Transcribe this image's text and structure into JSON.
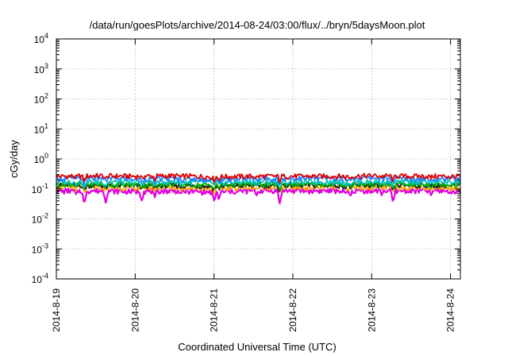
{
  "chart_data": {
    "type": "line",
    "title": "/data/run/goesPlots/archive/2014-08-24/03:00/flux/../bryn/5daysMoon.plot",
    "xlabel": "Coordinated Universal Time (UTC)",
    "ylabel": "cGy/day",
    "y_scale": "log",
    "ylim": [
      0.0001,
      10000
    ],
    "y_ticks": [
      {
        "value": 0.0001,
        "base": "10",
        "exp": "-4"
      },
      {
        "value": 0.001,
        "base": "10",
        "exp": "-3"
      },
      {
        "value": 0.01,
        "base": "10",
        "exp": "-2"
      },
      {
        "value": 0.1,
        "base": "10",
        "exp": "-1"
      },
      {
        "value": 1,
        "base": "10",
        "exp": "0"
      },
      {
        "value": 10,
        "base": "10",
        "exp": "1"
      },
      {
        "value": 100,
        "base": "10",
        "exp": "2"
      },
      {
        "value": 1000,
        "base": "10",
        "exp": "3"
      },
      {
        "value": 10000,
        "base": "10",
        "exp": "4"
      }
    ],
    "xlim": [
      "2014-08-19T00:00",
      "2014-08-24T03:00"
    ],
    "x_ticks": [
      {
        "value": "2014-08-19T00:00",
        "label": "2014-8-19"
      },
      {
        "value": "2014-08-20T00:00",
        "label": "2014-8-20"
      },
      {
        "value": "2014-08-21T00:00",
        "label": "2014-8-21"
      },
      {
        "value": "2014-08-22T00:00",
        "label": "2014-8-22"
      },
      {
        "value": "2014-08-23T00:00",
        "label": "2014-8-23"
      },
      {
        "value": "2014-08-24T00:00",
        "label": "2014-8-24"
      }
    ],
    "grid": true,
    "series_style": [
      {
        "color": "#e00000"
      },
      {
        "color": "#1a1a1a"
      },
      {
        "color": "#00c0c0"
      },
      {
        "color": "#00b000"
      },
      {
        "color": "#ffa000"
      },
      {
        "color": "#2080ff"
      },
      {
        "color": "#e000e0"
      }
    ],
    "series": [
      {
        "color": "#e00000",
        "levels": [
          {
            "x": "2014-08-19T00:00",
            "y": 0.26
          },
          {
            "x": "2014-08-19T12:00",
            "y": 0.27
          },
          {
            "x": "2014-08-20T00:00",
            "y": 0.26
          },
          {
            "x": "2014-08-20T12:00",
            "y": 0.27
          },
          {
            "x": "2014-08-21T00:00",
            "y": 0.25
          },
          {
            "x": "2014-08-21T12:00",
            "y": 0.26
          },
          {
            "x": "2014-08-22T00:00",
            "y": 0.26
          },
          {
            "x": "2014-08-22T12:00",
            "y": 0.26
          },
          {
            "x": "2014-08-23T00:00",
            "y": 0.27
          },
          {
            "x": "2014-08-23T12:00",
            "y": 0.26
          },
          {
            "x": "2014-08-24T03:00",
            "y": 0.26
          }
        ]
      },
      {
        "color": "#1a1a1a",
        "levels": [
          {
            "x": "2014-08-19T00:00",
            "y": 0.13
          },
          {
            "x": "2014-08-19T12:00",
            "y": 0.13
          },
          {
            "x": "2014-08-20T00:00",
            "y": 0.125
          },
          {
            "x": "2014-08-20T12:00",
            "y": 0.13
          },
          {
            "x": "2014-08-21T00:00",
            "y": 0.12
          },
          {
            "x": "2014-08-21T12:00",
            "y": 0.13
          },
          {
            "x": "2014-08-22T00:00",
            "y": 0.13
          },
          {
            "x": "2014-08-22T12:00",
            "y": 0.13
          },
          {
            "x": "2014-08-23T00:00",
            "y": 0.13
          },
          {
            "x": "2014-08-23T12:00",
            "y": 0.13
          },
          {
            "x": "2014-08-24T03:00",
            "y": 0.13
          }
        ]
      },
      {
        "color": "#00c0c0",
        "levels": [
          {
            "x": "2014-08-19T00:00",
            "y": 0.17
          },
          {
            "x": "2014-08-19T12:00",
            "y": 0.17
          },
          {
            "x": "2014-08-20T00:00",
            "y": 0.165
          },
          {
            "x": "2014-08-20T12:00",
            "y": 0.17
          },
          {
            "x": "2014-08-21T00:00",
            "y": 0.16
          },
          {
            "x": "2014-08-21T12:00",
            "y": 0.17
          },
          {
            "x": "2014-08-22T00:00",
            "y": 0.17
          },
          {
            "x": "2014-08-22T12:00",
            "y": 0.17
          },
          {
            "x": "2014-08-23T00:00",
            "y": 0.17
          },
          {
            "x": "2014-08-23T12:00",
            "y": 0.17
          },
          {
            "x": "2014-08-24T03:00",
            "y": 0.17
          }
        ]
      },
      {
        "color": "#00b000",
        "levels": [
          {
            "x": "2014-08-19T00:00",
            "y": 0.14
          },
          {
            "x": "2014-08-19T12:00",
            "y": 0.14
          },
          {
            "x": "2014-08-20T00:00",
            "y": 0.135
          },
          {
            "x": "2014-08-20T12:00",
            "y": 0.14
          },
          {
            "x": "2014-08-21T00:00",
            "y": 0.13
          },
          {
            "x": "2014-08-21T12:00",
            "y": 0.14
          },
          {
            "x": "2014-08-22T00:00",
            "y": 0.14
          },
          {
            "x": "2014-08-22T12:00",
            "y": 0.14
          },
          {
            "x": "2014-08-23T00:00",
            "y": 0.14
          },
          {
            "x": "2014-08-23T12:00",
            "y": 0.14
          },
          {
            "x": "2014-08-24T03:00",
            "y": 0.14
          }
        ]
      },
      {
        "color": "#ffa000",
        "levels": [
          {
            "x": "2014-08-19T00:00",
            "y": 0.11
          },
          {
            "x": "2014-08-19T12:00",
            "y": 0.11
          },
          {
            "x": "2014-08-20T00:00",
            "y": 0.105
          },
          {
            "x": "2014-08-20T12:00",
            "y": 0.11
          },
          {
            "x": "2014-08-21T00:00",
            "y": 0.1
          },
          {
            "x": "2014-08-21T12:00",
            "y": 0.11
          },
          {
            "x": "2014-08-22T00:00",
            "y": 0.11
          },
          {
            "x": "2014-08-22T12:00",
            "y": 0.11
          },
          {
            "x": "2014-08-23T00:00",
            "y": 0.11
          },
          {
            "x": "2014-08-23T12:00",
            "y": 0.11
          },
          {
            "x": "2014-08-24T03:00",
            "y": 0.11
          }
        ]
      },
      {
        "color": "#2080ff",
        "levels": [
          {
            "x": "2014-08-19T00:00",
            "y": 0.22
          },
          {
            "x": "2014-08-19T12:00",
            "y": 0.23
          },
          {
            "x": "2014-08-20T00:00",
            "y": 0.21
          },
          {
            "x": "2014-08-20T12:00",
            "y": 0.22
          },
          {
            "x": "2014-08-21T00:00",
            "y": 0.2
          },
          {
            "x": "2014-08-21T12:00",
            "y": 0.22
          },
          {
            "x": "2014-08-22T00:00",
            "y": 0.22
          },
          {
            "x": "2014-08-22T12:00",
            "y": 0.22
          },
          {
            "x": "2014-08-23T00:00",
            "y": 0.23
          },
          {
            "x": "2014-08-23T12:00",
            "y": 0.22
          },
          {
            "x": "2014-08-24T03:00",
            "y": 0.22
          }
        ]
      },
      {
        "color": "#e000e0",
        "levels": [
          {
            "x": "2014-08-19T00:00",
            "y": 0.085
          },
          {
            "x": "2014-08-19T12:00",
            "y": 0.085
          },
          {
            "x": "2014-08-20T00:00",
            "y": 0.08
          },
          {
            "x": "2014-08-20T12:00",
            "y": 0.085
          },
          {
            "x": "2014-08-21T00:00",
            "y": 0.075
          },
          {
            "x": "2014-08-21T12:00",
            "y": 0.085
          },
          {
            "x": "2014-08-22T00:00",
            "y": 0.085
          },
          {
            "x": "2014-08-22T12:00",
            "y": 0.085
          },
          {
            "x": "2014-08-23T00:00",
            "y": 0.085
          },
          {
            "x": "2014-08-23T12:00",
            "y": 0.085
          },
          {
            "x": "2014-08-24T03:00",
            "y": 0.085
          }
        ]
      }
    ],
    "dips": [
      {
        "x": "2014-08-19T02:00",
        "y": 0.08
      },
      {
        "x": "2014-08-19T06:00",
        "y": 0.06
      },
      {
        "x": "2014-08-19T08:30",
        "y": 0.025
      },
      {
        "x": "2014-08-19T15:00",
        "y": 0.04
      },
      {
        "x": "2014-08-20T02:00",
        "y": 0.05
      },
      {
        "x": "2014-08-20T06:00",
        "y": 0.045
      },
      {
        "x": "2014-08-20T14:00",
        "y": 0.06
      },
      {
        "x": "2014-08-21T00:00",
        "y": 0.04
      },
      {
        "x": "2014-08-21T01:30",
        "y": 0.05
      },
      {
        "x": "2014-08-21T13:00",
        "y": 0.065
      },
      {
        "x": "2014-08-21T20:00",
        "y": 0.03
      },
      {
        "x": "2014-08-22T16:00",
        "y": 0.06
      },
      {
        "x": "2014-08-22T17:30",
        "y": 0.05
      },
      {
        "x": "2014-08-23T03:00",
        "y": 0.07
      },
      {
        "x": "2014-08-23T06:30",
        "y": 0.03
      },
      {
        "x": "2014-08-23T18:00",
        "y": 0.06
      },
      {
        "x": "2014-08-24T00:00",
        "y": 0.065
      }
    ]
  }
}
